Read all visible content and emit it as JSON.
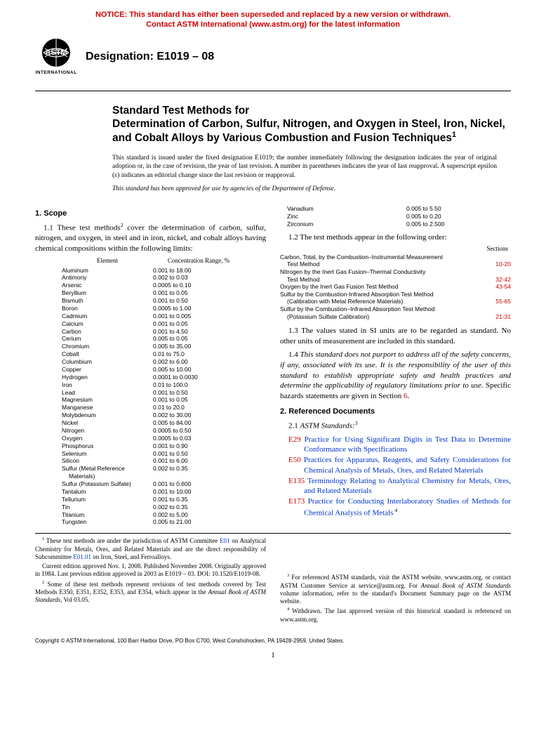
{
  "notice": {
    "line1": "NOTICE: This standard has either been superseded and replaced by a new version or withdrawn.",
    "line2": "Contact ASTM International (www.astm.org) for the latest information"
  },
  "logo": {
    "top": "ASTM",
    "bottom": "INTERNATIONAL"
  },
  "designation_label": "Designation: E1019 – 08",
  "title": {
    "kicker": "Standard Test Methods for",
    "main": "Determination of Carbon, Sulfur, Nitrogen, and Oxygen in Steel, Iron, Nickel, and Cobalt Alloys by Various Combustion and Fusion Techniques"
  },
  "issue_note": "This standard is issued under the fixed designation E1019; the number immediately following the designation indicates the year of original adoption or, in the case of revision, the year of last revision. A number in parentheses indicates the year of last reapproval. A superscript epsilon (ε) indicates an editorial change since the last revision or reapproval.",
  "approval_note": "This standard has been approved for use by agencies of the Department of Defense.",
  "sections": {
    "scope_head": "1. Scope",
    "para_1_1a": "1.1 These test methods",
    "para_1_1b": " cover the determination of carbon, sulfur, nitrogen, and oxygen, in steel and in iron, nickel, and cobalt alloys having chemical compositions within the following limits:",
    "para_1_2": "1.2 The test methods appear in the following order:",
    "para_1_3": "1.3 The values stated in SI units are to be regarded as standard. No other units of measurement are included in this standard.",
    "para_1_4a": "1.4 ",
    "para_1_4b": "This standard does not purport to address all of the safety concerns, if any, associated with its use. It is the responsibility of the user of this standard to establish appropriate safety and health practices and determine the applicability of regulatory limitations prior to use.",
    "para_1_4c": " Specific hazards statements are given in Section ",
    "para_1_4d": "6",
    "para_1_4e": ".",
    "ref_head": "2. Referenced Documents",
    "ref_sub": "2.1 ",
    "ref_sub_italic": "ASTM Standards:"
  },
  "elem_headers": {
    "c1": "Element",
    "c2": "Concentration Range, %"
  },
  "elements": [
    [
      "Aluminum",
      "0.001 to 18.00"
    ],
    [
      "Antimony",
      "0.002 to 0.03"
    ],
    [
      "Arsenic",
      "0.0005 to 0.10"
    ],
    [
      "Beryllium",
      "0.001 to 0.05"
    ],
    [
      "Bismuth",
      "0.001 to 0.50"
    ],
    [
      "Boron",
      "0.0005 to 1.00"
    ],
    [
      "Cadmium",
      "0.001 to 0.005"
    ],
    [
      "Calcium",
      "0.001 to 0.05"
    ],
    [
      "Carbon",
      "0.001 to 4.50"
    ],
    [
      "Cerium",
      "0.005 to 0.05"
    ],
    [
      "Chromium",
      "0.005 to 35.00"
    ],
    [
      "Cobalt",
      "0.01 to 75.0"
    ],
    [
      "Columbium",
      "0.002 to 6.00"
    ],
    [
      "Copper",
      "0.005 to 10.00"
    ],
    [
      "Hydrogen",
      "0.0001 to 0.0030"
    ],
    [
      "Iron",
      "0.01 to 100.0"
    ],
    [
      "Lead",
      "0.001 to 0.50"
    ],
    [
      "Magnesium",
      "0.001 to 0.05"
    ],
    [
      "Manganese",
      "0.01 to 20.0"
    ],
    [
      "Molybdenum",
      "0.002 to 30.00"
    ],
    [
      "Nickel",
      "0.005 to 84.00"
    ],
    [
      "Nitrogen",
      "0.0005 to 0.50"
    ],
    [
      "Oxygen",
      "0.0005 to 0.03"
    ],
    [
      "Phosphorus",
      "0.001 to 0.90"
    ],
    [
      "Selenium",
      "0.001 to 0.50"
    ],
    [
      "Silicon",
      "0.001 to 6.00"
    ],
    [
      "Sulfur (Metal Reference",
      "0.002 to 0.35"
    ],
    [
      "__SUB__Materials)",
      ""
    ],
    [
      "Sulfur (Potassium Sulfate)",
      "0.001 to 0.600"
    ],
    [
      "Tantalum",
      "0.001 to 10.00"
    ],
    [
      "Tellurium",
      "0.001 to 0.35"
    ],
    [
      "Tin",
      "0.002 to 0.35"
    ],
    [
      "Titanium",
      "0.002 to 5.00"
    ],
    [
      "Tungsten",
      "0.005 to 21.00"
    ]
  ],
  "supp_elements": [
    [
      "Vanadium",
      "0.005 to 5.50"
    ],
    [
      "Zinc",
      "0.005 to 0.20"
    ],
    [
      "Zirconium",
      "0.005 to 2.500"
    ]
  ],
  "order_header": "Sections",
  "order": [
    [
      "Carbon, Total, by the Combustion–Instrumental Measurement",
      ""
    ],
    [
      "__SUB__Test Method",
      "10-20"
    ],
    [
      "Nitrogen by the Inert Gas Fusion–Thermal Conductivity",
      ""
    ],
    [
      "__SUB__Test Method",
      "32-42"
    ],
    [
      "Oxygen by the Inert Gas Fusion Test Method",
      "43-54"
    ],
    [
      "Sulfur by the Combustion-Infrared Absorption Test Method",
      ""
    ],
    [
      "__SUB__(Calibration with Metal Reference Materials)",
      "55-65"
    ],
    [
      "Sulfur by the Combustion–Infrared Absorption Test Method",
      ""
    ],
    [
      "__SUB__(Potassium Sulfate Calibration)",
      "21-31"
    ]
  ],
  "references": [
    {
      "code": "E29",
      "text": "Practice for Using Significant Digits in Test Data to Determine Conformance with Specifications"
    },
    {
      "code": "E50",
      "text": "Practices for Apparatus, Reagents, and Safety Considerations for Chemical Analysis of Metals, Ores, and Related Materials"
    },
    {
      "code": "E135",
      "text": "Terminology Relating to Analytical Chemistry for Metals, Ores, and Related Materials"
    },
    {
      "code": "E173",
      "text": "Practice for Conducting Interlaboratory Studies of Methods for Chemical Analysis of Metals",
      "sup": "4"
    }
  ],
  "footnotes": {
    "f1a": " These test methods are under the jurisdiction of ASTM Committee ",
    "f1l": "E01",
    "f1b": " on Analytical Chemistry for Metals, Ores, and Related Materials and are the direct responsibility of Subcommittee ",
    "f1l2": "E01.01",
    "f1c": " on Iron, Steel, and Ferroalloys.",
    "f1d": "Current edition approved Nov. 1, 2008. Published November 2008. Originally approved in 1984. Last previous edition approved in 2003 as E1019 – 03. DOI: 10.1520/E1019-08.",
    "f2a": " Some of these test methods represent revisions of test methods covered by Test Methods E350, E351, E352, E353, and E354, which appear in the ",
    "f2b": "Annual Book of ASTM Standards",
    "f2c": ", Vol 03.05.",
    "f3a": " For referenced ASTM standards, visit the ASTM website, www.astm.org, or contact ASTM Customer Service at service@astm.org. For ",
    "f3b": "Annual Book of ASTM Standards",
    "f3c": " volume information, refer to the standard's Document Summary page on the ASTM website.",
    "f4": " Withdrawn. The last approved version of this historical standard is referenced on www.astm.org."
  },
  "copyright": "Copyright © ASTM International, 100 Barr Harbor Drive, PO Box C700, West Conshohocken, PA 19428-2959, United States.",
  "pagenum": "1"
}
